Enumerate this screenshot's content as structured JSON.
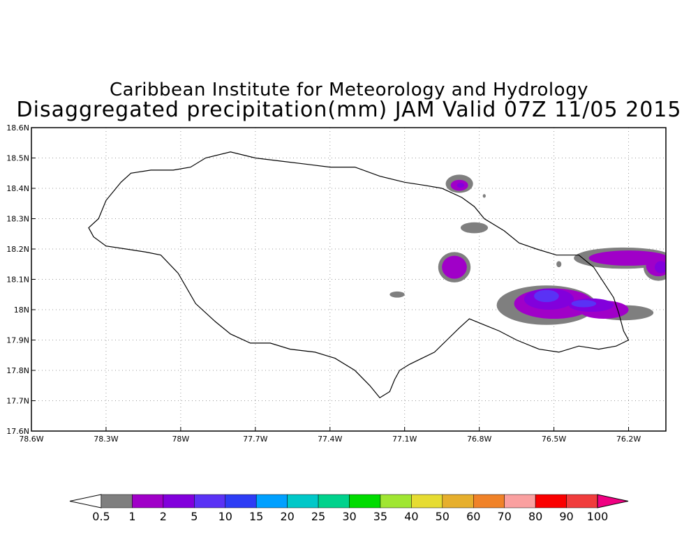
{
  "title": {
    "line1": "Caribbean Institute for Meteorology and Hydrology",
    "line2": "Disaggregated precipitation(mm) JAM Valid 07Z 11/05 2015"
  },
  "map": {
    "lon_range": [
      -78.6,
      -76.05
    ],
    "lat_range": [
      17.6,
      18.6
    ],
    "x_ticks": [
      {
        "lon": -78.6,
        "label": "78.6W"
      },
      {
        "lon": -78.3,
        "label": "78.3W"
      },
      {
        "lon": -78.0,
        "label": "78W"
      },
      {
        "lon": -77.7,
        "label": "77.7W"
      },
      {
        "lon": -77.4,
        "label": "77.4W"
      },
      {
        "lon": -77.1,
        "label": "77.1W"
      },
      {
        "lon": -76.8,
        "label": "76.8W"
      },
      {
        "lon": -76.5,
        "label": "76.5W"
      },
      {
        "lon": -76.2,
        "label": "76.2W"
      }
    ],
    "y_ticks": [
      {
        "lat": 17.6,
        "label": "17.6N"
      },
      {
        "lat": 17.7,
        "label": "17.7N"
      },
      {
        "lat": 17.8,
        "label": "17.8N"
      },
      {
        "lat": 17.9,
        "label": "17.9N"
      },
      {
        "lat": 18.0,
        "label": "18N"
      },
      {
        "lat": 18.1,
        "label": "18.1N"
      },
      {
        "lat": 18.2,
        "label": "18.2N"
      },
      {
        "lat": 18.3,
        "label": "18.3N"
      },
      {
        "lat": 18.4,
        "label": "18.4N"
      },
      {
        "lat": 18.5,
        "label": "18.5N"
      },
      {
        "lat": 18.6,
        "label": "18.6N"
      }
    ],
    "grid": true,
    "coastline": [
      [
        -78.37,
        18.27
      ],
      [
        -78.33,
        18.3
      ],
      [
        -78.3,
        18.36
      ],
      [
        -78.24,
        18.42
      ],
      [
        -78.2,
        18.45
      ],
      [
        -78.12,
        18.46
      ],
      [
        -78.03,
        18.46
      ],
      [
        -77.96,
        18.47
      ],
      [
        -77.9,
        18.5
      ],
      [
        -77.8,
        18.52
      ],
      [
        -77.7,
        18.5
      ],
      [
        -77.6,
        18.49
      ],
      [
        -77.5,
        18.48
      ],
      [
        -77.4,
        18.47
      ],
      [
        -77.3,
        18.47
      ],
      [
        -77.2,
        18.44
      ],
      [
        -77.1,
        18.42
      ],
      [
        -77.02,
        18.41
      ],
      [
        -76.95,
        18.4
      ],
      [
        -76.87,
        18.37
      ],
      [
        -76.82,
        18.34
      ],
      [
        -76.78,
        18.3
      ],
      [
        -76.7,
        18.26
      ],
      [
        -76.64,
        18.22
      ],
      [
        -76.57,
        18.2
      ],
      [
        -76.49,
        18.18
      ],
      [
        -76.4,
        18.18
      ],
      [
        -76.34,
        18.14
      ],
      [
        -76.3,
        18.09
      ],
      [
        -76.26,
        18.04
      ],
      [
        -76.24,
        17.99
      ],
      [
        -76.22,
        17.93
      ],
      [
        -76.2,
        17.9
      ],
      [
        -76.25,
        17.88
      ],
      [
        -76.32,
        17.87
      ],
      [
        -76.4,
        17.88
      ],
      [
        -76.48,
        17.86
      ],
      [
        -76.56,
        17.87
      ],
      [
        -76.65,
        17.9
      ],
      [
        -76.72,
        17.93
      ],
      [
        -76.78,
        17.95
      ],
      [
        -76.84,
        17.97
      ],
      [
        -76.88,
        17.94
      ],
      [
        -76.93,
        17.9
      ],
      [
        -76.98,
        17.86
      ],
      [
        -77.03,
        17.84
      ],
      [
        -77.08,
        17.82
      ],
      [
        -77.12,
        17.8
      ],
      [
        -77.14,
        17.77
      ],
      [
        -77.16,
        17.73
      ],
      [
        -77.2,
        17.71
      ],
      [
        -77.24,
        17.75
      ],
      [
        -77.3,
        17.8
      ],
      [
        -77.38,
        17.84
      ],
      [
        -77.46,
        17.86
      ],
      [
        -77.56,
        17.87
      ],
      [
        -77.64,
        17.89
      ],
      [
        -77.72,
        17.89
      ],
      [
        -77.8,
        17.92
      ],
      [
        -77.86,
        17.96
      ],
      [
        -77.94,
        18.02
      ],
      [
        -78.01,
        18.12
      ],
      [
        -78.08,
        18.18
      ],
      [
        -78.14,
        18.19
      ],
      [
        -78.22,
        18.2
      ],
      [
        -78.3,
        18.21
      ],
      [
        -78.35,
        18.24
      ],
      [
        -78.37,
        18.27
      ]
    ],
    "precip_blobs": [
      {
        "level": "0.5",
        "lon": -76.88,
        "lat": 18.415,
        "rx": 0.055,
        "ry": 0.03
      },
      {
        "level": "1",
        "lon": -76.88,
        "lat": 18.41,
        "rx": 0.035,
        "ry": 0.018
      },
      {
        "level": "2",
        "lon": -76.875,
        "lat": 18.41,
        "rx": 0.015,
        "ry": 0.008
      },
      {
        "level": "0.5",
        "lon": -76.82,
        "lat": 18.27,
        "rx": 0.055,
        "ry": 0.018
      },
      {
        "level": "0.5",
        "lon": -76.9,
        "lat": 18.14,
        "rx": 0.065,
        "ry": 0.05
      },
      {
        "level": "1",
        "lon": -76.9,
        "lat": 18.14,
        "rx": 0.05,
        "ry": 0.038
      },
      {
        "level": "0.5",
        "lon": -77.13,
        "lat": 18.05,
        "rx": 0.03,
        "ry": 0.01
      },
      {
        "level": "0.5",
        "lon": -76.53,
        "lat": 18.015,
        "rx": 0.2,
        "ry": 0.065
      },
      {
        "level": "0.5",
        "lon": -76.22,
        "lat": 17.99,
        "rx": 0.12,
        "ry": 0.025
      },
      {
        "level": "1",
        "lon": -76.5,
        "lat": 18.02,
        "rx": 0.16,
        "ry": 0.05
      },
      {
        "level": "1",
        "lon": -76.3,
        "lat": 18.0,
        "rx": 0.1,
        "ry": 0.03
      },
      {
        "level": "2",
        "lon": -76.52,
        "lat": 18.035,
        "rx": 0.1,
        "ry": 0.035
      },
      {
        "level": "2",
        "lon": -76.35,
        "lat": 18.015,
        "rx": 0.09,
        "ry": 0.022
      },
      {
        "level": "5",
        "lon": -76.53,
        "lat": 18.045,
        "rx": 0.05,
        "ry": 0.02
      },
      {
        "level": "5",
        "lon": -76.38,
        "lat": 18.02,
        "rx": 0.05,
        "ry": 0.012
      },
      {
        "level": "0.5",
        "lon": -76.22,
        "lat": 18.17,
        "rx": 0.2,
        "ry": 0.035
      },
      {
        "level": "0.5",
        "lon": -76.08,
        "lat": 18.14,
        "rx": 0.06,
        "ry": 0.045
      },
      {
        "level": "1",
        "lon": -76.2,
        "lat": 18.17,
        "rx": 0.16,
        "ry": 0.025
      },
      {
        "level": "1",
        "lon": -76.08,
        "lat": 18.145,
        "rx": 0.05,
        "ry": 0.035
      },
      {
        "level": "2",
        "lon": -76.07,
        "lat": 18.14,
        "rx": 0.025,
        "ry": 0.02
      },
      {
        "level": "0.5",
        "lon": -76.48,
        "lat": 18.15,
        "rx": 0.01,
        "ry": 0.01
      },
      {
        "level": "0.5",
        "lon": -76.78,
        "lat": 18.375,
        "rx": 0.006,
        "ry": 0.006
      }
    ]
  },
  "colorbar": {
    "levels": [
      {
        "label": "0.5",
        "color": "#7f7f7f"
      },
      {
        "label": "1",
        "color": "#a000c8"
      },
      {
        "label": "2",
        "color": "#8200dc"
      },
      {
        "label": "5",
        "color": "#5a32f5"
      },
      {
        "label": "10",
        "color": "#2d3cf5"
      },
      {
        "label": "15",
        "color": "#00a0ff"
      },
      {
        "label": "20",
        "color": "#00c8c8"
      },
      {
        "label": "25",
        "color": "#00d28c"
      },
      {
        "label": "30",
        "color": "#00dc00"
      },
      {
        "label": "35",
        "color": "#a0e632"
      },
      {
        "label": "40",
        "color": "#e6dc32"
      },
      {
        "label": "50",
        "color": "#e6af2d"
      },
      {
        "label": "60",
        "color": "#f08228"
      },
      {
        "label": "70",
        "color": "#faa0a0"
      },
      {
        "label": "80",
        "color": "#fa0000"
      },
      {
        "label": "90",
        "color": "#f03c3c"
      },
      {
        "label": "100",
        "color": "#f00082"
      }
    ],
    "low_end_color": "#ffffff",
    "high_end_color": "#f00082"
  }
}
